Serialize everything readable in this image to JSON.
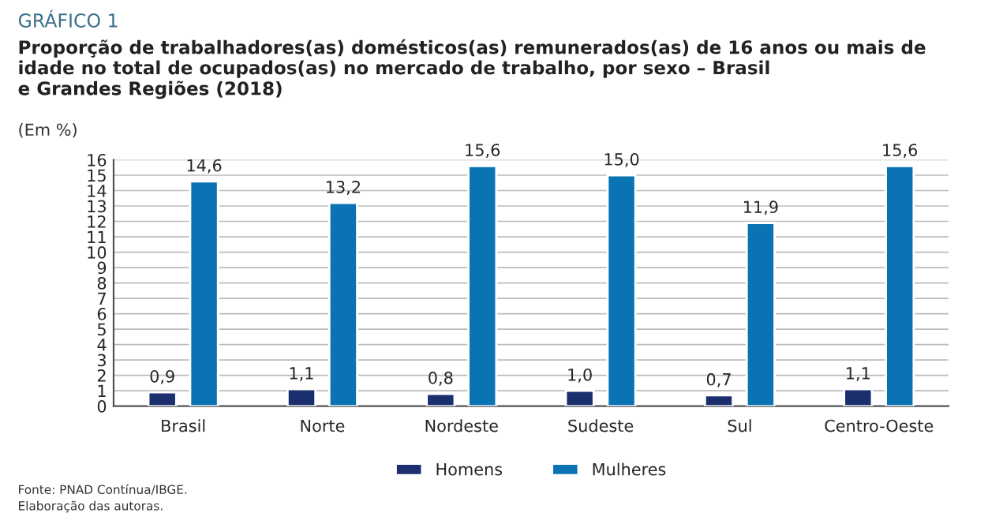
{
  "chart_data": {
    "type": "bar",
    "title": "GRÁFICO 1",
    "subtitle": "Proporção de trabalhadores(as) domésticos(as) remunerados(as) de 16 anos ou mais de\nidade no total de ocupados(as) no mercado de trabalho, por sexo – Brasil\ne Grandes Regiões (2018)",
    "annotations": [
      "(Em %)",
      "Fonte: PNAD Contínua/IBGE.\nElaboração das autoras."
    ],
    "categories": [
      "Brasil",
      "Norte",
      "Nordeste",
      "Sudeste",
      "Sul",
      "Centro-Oeste"
    ],
    "series": [
      {
        "name": "Homens",
        "color": "#1b2f6e",
        "values": [
          0.9,
          1.1,
          0.8,
          1.0,
          0.7,
          1.1
        ],
        "value_labels": [
          "0,9",
          "1,1",
          "0,8",
          "1,0",
          "0,7",
          "1,1"
        ]
      },
      {
        "name": "Mulheres",
        "color": "#0a73b4",
        "values": [
          14.6,
          13.2,
          15.6,
          15.0,
          11.9,
          15.6
        ],
        "value_labels": [
          "14,6",
          "13,2",
          "15,6",
          "15,0",
          "11,9",
          "15,6"
        ]
      }
    ],
    "ylim": [
      0,
      16
    ],
    "yticks": [
      0,
      1,
      2,
      3,
      4,
      5,
      6,
      7,
      8,
      9,
      10,
      11,
      12,
      13,
      14,
      15,
      16
    ],
    "grid": "y",
    "legend": "bottom"
  }
}
